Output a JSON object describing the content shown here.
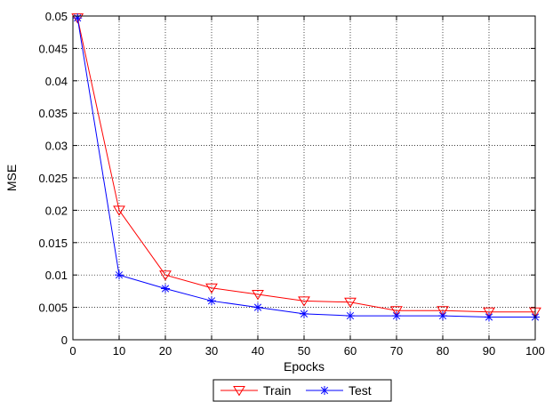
{
  "chart_data": {
    "type": "line",
    "xlabel": "Epocks",
    "ylabel": "MSE",
    "xlim": [
      0,
      100
    ],
    "ylim": [
      0,
      0.05
    ],
    "x_ticks": [
      0,
      10,
      20,
      30,
      40,
      50,
      60,
      70,
      80,
      90,
      100
    ],
    "y_ticks": [
      "0",
      "0.005",
      "0.01",
      "0.015",
      "0.02",
      "0.025",
      "0.03",
      "0.035",
      "0.04",
      "0.045",
      "0.05"
    ],
    "grid": true,
    "legend_position": "bottom-center, below axes",
    "series": [
      {
        "name": "Train",
        "color": "#ff0000",
        "marker": "triangle-down",
        "x": [
          1,
          10,
          20,
          30,
          40,
          50,
          60,
          70,
          80,
          90,
          100
        ],
        "y": [
          0.0497,
          0.02,
          0.01,
          0.008,
          0.007,
          0.006,
          0.0058,
          0.0045,
          0.0045,
          0.0043,
          0.0043
        ]
      },
      {
        "name": "Test",
        "color": "#0000ff",
        "marker": "asterisk",
        "x": [
          1,
          10,
          20,
          30,
          40,
          50,
          60,
          70,
          80,
          90,
          100
        ],
        "y": [
          0.0497,
          0.01,
          0.0079,
          0.006,
          0.005,
          0.004,
          0.0037,
          0.0037,
          0.0037,
          0.0035,
          0.0035
        ]
      }
    ]
  }
}
